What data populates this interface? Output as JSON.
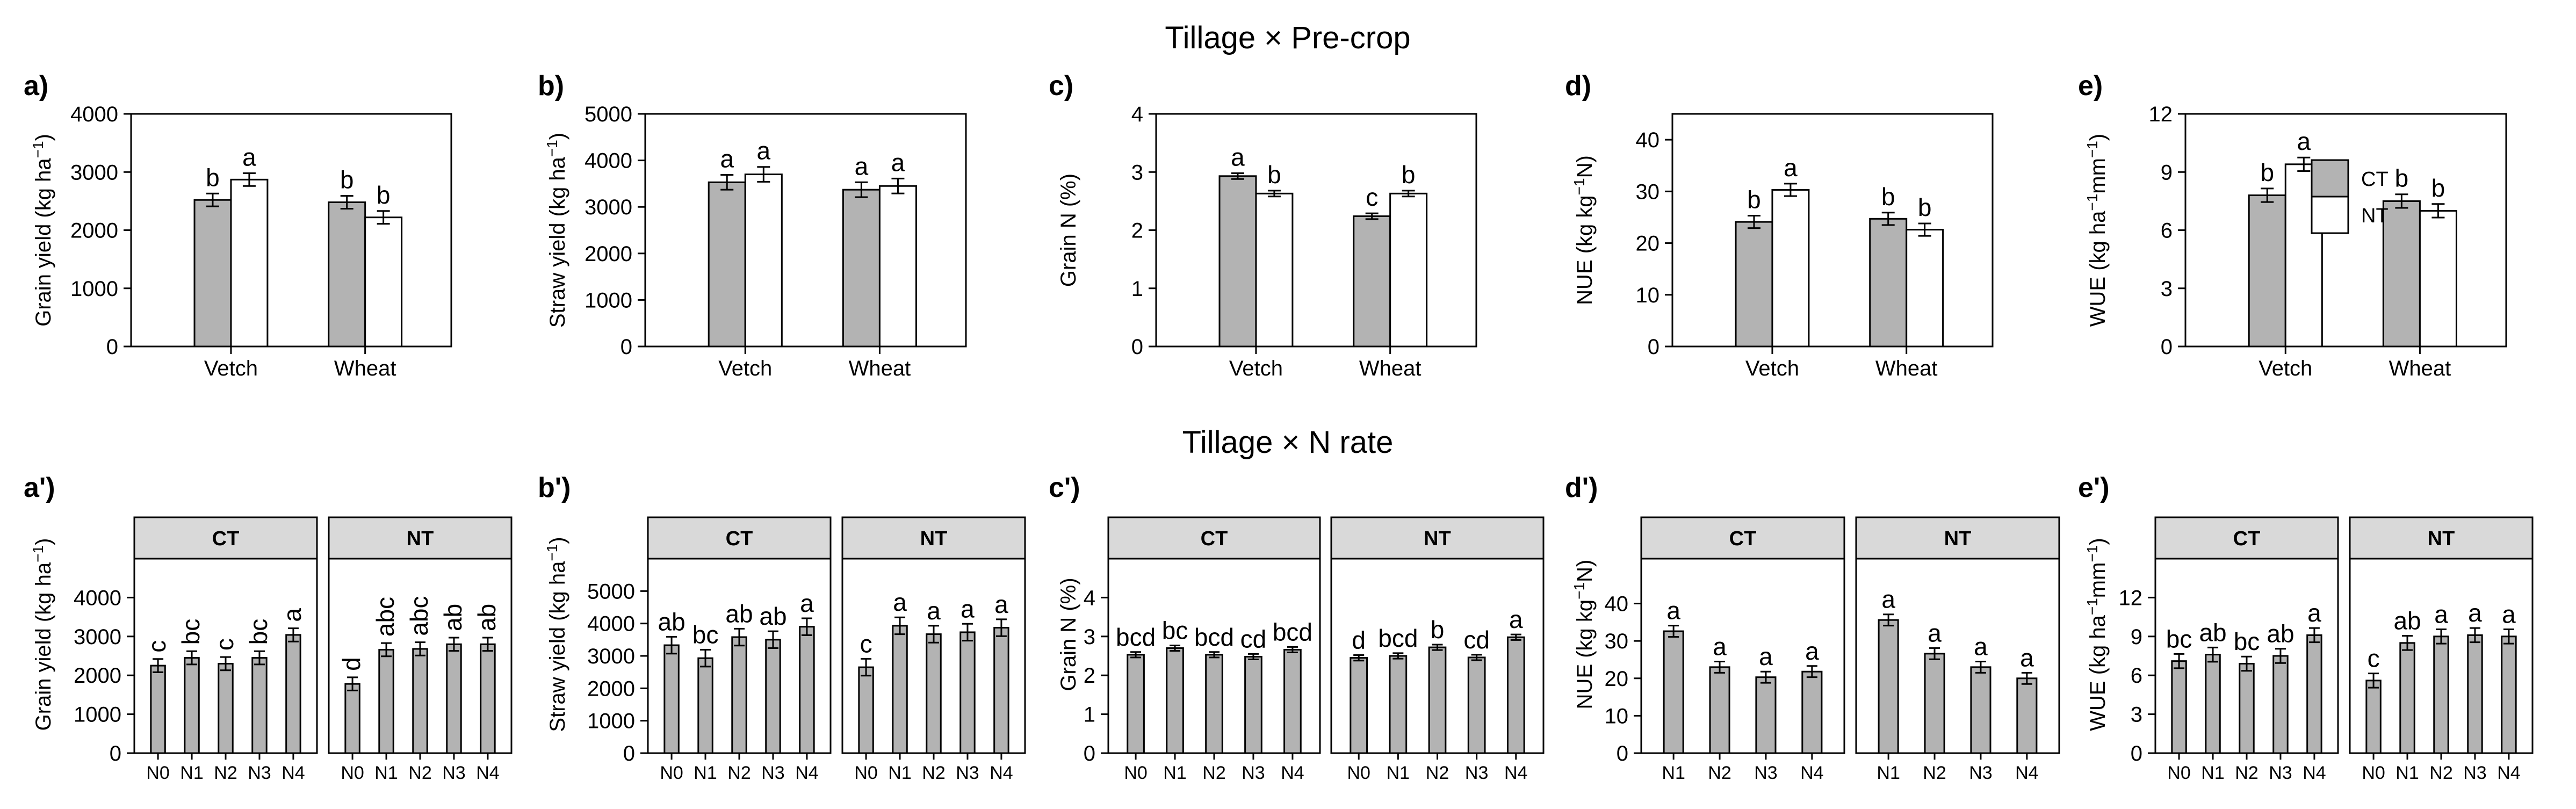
{
  "figure": {
    "row_titles": [
      "Tillage × Pre-crop",
      "Tillage × N rate"
    ]
  },
  "legend": {
    "entries": [
      {
        "label": "CT",
        "color": "#b3b3b3"
      },
      {
        "label": "NT",
        "color": "#ffffff"
      }
    ]
  },
  "colors": {
    "ct_fill": "#b3b3b3",
    "nt_fill": "#ffffff",
    "strip_fill": "#d9d9d9",
    "axis": "#000000"
  },
  "chart_data": [
    {
      "id": "a",
      "panel_label": "a)",
      "type": "bar",
      "title": "Tillage × Pre-crop",
      "ylabel": "Grain yield (kg  ha",
      "ylabel_sup": "−1",
      "ylabel_end": ")",
      "ylim": [
        0,
        4000
      ],
      "yticks": [
        0,
        1000,
        2000,
        3000,
        4000
      ],
      "categories": [
        "Vetch",
        "Wheat"
      ],
      "series": [
        {
          "name": "CT",
          "values": [
            2520,
            2480
          ],
          "errors": [
            110,
            110
          ],
          "letters": [
            "b",
            "b"
          ]
        },
        {
          "name": "NT",
          "values": [
            2870,
            2220
          ],
          "errors": [
            110,
            110
          ],
          "letters": [
            "a",
            "b"
          ]
        }
      ]
    },
    {
      "id": "b",
      "panel_label": "b)",
      "type": "bar",
      "title": "Tillage × Pre-crop",
      "ylabel": "Straw yield (kg  ha",
      "ylabel_sup": "−1",
      "ylabel_end": ")",
      "ylim": [
        0,
        5000
      ],
      "yticks": [
        0,
        1000,
        2000,
        3000,
        4000,
        5000
      ],
      "categories": [
        "Vetch",
        "Wheat"
      ],
      "series": [
        {
          "name": "CT",
          "values": [
            3530,
            3370
          ],
          "errors": [
            160,
            160
          ],
          "letters": [
            "a",
            "a"
          ]
        },
        {
          "name": "NT",
          "values": [
            3700,
            3450
          ],
          "errors": [
            160,
            160
          ],
          "letters": [
            "a",
            "a"
          ]
        }
      ]
    },
    {
      "id": "c",
      "panel_label": "c)",
      "type": "bar",
      "title": "Tillage × Pre-crop",
      "ylabel": "Grain N (%)",
      "ylabel_sup": "",
      "ylabel_end": "",
      "ylim": [
        0,
        4
      ],
      "yticks": [
        0,
        1,
        2,
        3,
        4
      ],
      "categories": [
        "Vetch",
        "Wheat"
      ],
      "series": [
        {
          "name": "CT",
          "values": [
            2.93,
            2.24
          ],
          "errors": [
            0.05,
            0.05
          ],
          "letters": [
            "a",
            "c"
          ]
        },
        {
          "name": "NT",
          "values": [
            2.63,
            2.63
          ],
          "errors": [
            0.05,
            0.05
          ],
          "letters": [
            "b",
            "b"
          ]
        }
      ]
    },
    {
      "id": "d",
      "panel_label": "d)",
      "type": "bar",
      "title": "Tillage × Pre-crop",
      "ylabel": "NUE (kg  kg",
      "ylabel_sup": "−1",
      "ylabel_end": "N)",
      "ylim": [
        0,
        45
      ],
      "yticks": [
        0,
        10,
        20,
        30,
        40
      ],
      "categories": [
        "Vetch",
        "Wheat"
      ],
      "series": [
        {
          "name": "CT",
          "values": [
            24.1,
            24.7
          ],
          "errors": [
            1.2,
            1.2
          ],
          "letters": [
            "b",
            "b"
          ]
        },
        {
          "name": "NT",
          "values": [
            30.3,
            22.6
          ],
          "errors": [
            1.2,
            1.2
          ],
          "letters": [
            "a",
            "b"
          ]
        }
      ]
    },
    {
      "id": "e",
      "panel_label": "e)",
      "type": "bar",
      "title": "Tillage × Pre-crop",
      "ylabel": "WUE (kg ha",
      "ylabel_sup": "−1",
      "ylabel_mid": "mm",
      "ylabel_sup2": "−1",
      "ylabel_end": ")",
      "ylim": [
        0,
        12
      ],
      "yticks": [
        0,
        3,
        6,
        9,
        12
      ],
      "categories": [
        "Vetch",
        "Wheat"
      ],
      "legend": true,
      "series": [
        {
          "name": "CT",
          "values": [
            7.8,
            7.5
          ],
          "errors": [
            0.35,
            0.35
          ],
          "letters": [
            "b",
            "b"
          ]
        },
        {
          "name": "NT",
          "values": [
            9.4,
            7.0
          ],
          "errors": [
            0.35,
            0.35
          ],
          "letters": [
            "a",
            "b"
          ]
        }
      ]
    },
    {
      "id": "a2",
      "panel_label": "a')",
      "type": "bar",
      "title": "Tillage × N rate",
      "ylabel": "Grain yield (kg  ha",
      "ylabel_sup": "−1",
      "ylabel_end": ")",
      "ylim": [
        0,
        5000
      ],
      "yticks": [
        0,
        1000,
        2000,
        3000,
        4000
      ],
      "rotate_letters": true,
      "facets": [
        {
          "strip": "CT",
          "categories": [
            "N0",
            "N1",
            "N2",
            "N3",
            "N4"
          ],
          "values": [
            2250,
            2450,
            2300,
            2450,
            3040
          ],
          "errors": [
            170,
            170,
            170,
            170,
            170
          ],
          "letters": [
            "c",
            "bc",
            "c",
            "bc",
            "a"
          ]
        },
        {
          "strip": "NT",
          "categories": [
            "N0",
            "N1",
            "N2",
            "N3",
            "N4"
          ],
          "values": [
            1780,
            2660,
            2680,
            2800,
            2800
          ],
          "errors": [
            170,
            170,
            170,
            170,
            170
          ],
          "letters": [
            "d",
            "abc",
            "abc",
            "ab",
            "ab"
          ]
        }
      ]
    },
    {
      "id": "b2",
      "panel_label": "b')",
      "type": "bar",
      "title": "Tillage × N rate",
      "ylabel": "Straw yield (kg  ha",
      "ylabel_sup": "−1",
      "ylabel_end": ")",
      "ylim": [
        0,
        6000
      ],
      "yticks": [
        0,
        1000,
        2000,
        3000,
        4000,
        5000
      ],
      "facets": [
        {
          "strip": "CT",
          "categories": [
            "N0",
            "N1",
            "N2",
            "N3",
            "N4"
          ],
          "values": [
            3330,
            2930,
            3580,
            3500,
            3900
          ],
          "errors": [
            260,
            260,
            260,
            260,
            260
          ],
          "letters": [
            "ab",
            "bc",
            "ab",
            "ab",
            "a"
          ]
        },
        {
          "strip": "NT",
          "categories": [
            "N0",
            "N1",
            "N2",
            "N3",
            "N4"
          ],
          "values": [
            2650,
            3930,
            3670,
            3730,
            3870
          ],
          "errors": [
            260,
            260,
            260,
            260,
            260
          ],
          "letters": [
            "c",
            "a",
            "a",
            "a",
            "a"
          ]
        }
      ]
    },
    {
      "id": "c2",
      "panel_label": "c')",
      "type": "bar",
      "title": "Tillage × N rate",
      "ylabel": "Grain N (%)",
      "ylabel_sup": "",
      "ylabel_end": "",
      "ylim": [
        0,
        5
      ],
      "yticks": [
        0,
        1,
        2,
        3,
        4
      ],
      "facets": [
        {
          "strip": "CT",
          "categories": [
            "N0",
            "N1",
            "N2",
            "N3",
            "N4"
          ],
          "values": [
            2.53,
            2.7,
            2.53,
            2.48,
            2.66
          ],
          "errors": [
            0.07,
            0.07,
            0.07,
            0.07,
            0.07
          ],
          "letters": [
            "bcd",
            "bc",
            "bcd",
            "cd",
            "bcd"
          ]
        },
        {
          "strip": "NT",
          "categories": [
            "N0",
            "N1",
            "N2",
            "N3",
            "N4"
          ],
          "values": [
            2.45,
            2.5,
            2.72,
            2.46,
            2.98
          ],
          "errors": [
            0.07,
            0.07,
            0.07,
            0.07,
            0.07
          ],
          "letters": [
            "d",
            "bcd",
            "b",
            "cd",
            "a"
          ]
        }
      ]
    },
    {
      "id": "d2",
      "panel_label": "d')",
      "type": "bar",
      "title": "Tillage × N rate",
      "ylabel": "NUE (kg  kg",
      "ylabel_sup": "−1",
      "ylabel_end": "N)",
      "ylim": [
        0,
        52
      ],
      "yticks": [
        0,
        10,
        20,
        30,
        40
      ],
      "facets": [
        {
          "strip": "CT",
          "categories": [
            "N1",
            "N2",
            "N3",
            "N4"
          ],
          "values": [
            32.6,
            23.0,
            20.3,
            21.8
          ],
          "errors": [
            1.5,
            1.5,
            1.5,
            1.5
          ],
          "letters": [
            "a",
            "a",
            "a",
            "a"
          ]
        },
        {
          "strip": "NT",
          "categories": [
            "N1",
            "N2",
            "N3",
            "N4"
          ],
          "values": [
            35.6,
            26.6,
            23.0,
            20.0
          ],
          "errors": [
            1.5,
            1.5,
            1.5,
            1.5
          ],
          "letters": [
            "a",
            "a",
            "a",
            "a"
          ]
        }
      ]
    },
    {
      "id": "e2",
      "panel_label": "e')",
      "type": "bar",
      "title": "Tillage × N rate",
      "ylabel": "WUE (kg ha",
      "ylabel_sup": "−1",
      "ylabel_mid": "mm",
      "ylabel_sup2": "−1",
      "ylabel_end": ")",
      "ylim": [
        0,
        15
      ],
      "yticks": [
        0,
        3,
        6,
        9,
        12
      ],
      "facets": [
        {
          "strip": "CT",
          "categories": [
            "N0",
            "N1",
            "N2",
            "N3",
            "N4"
          ],
          "values": [
            7.1,
            7.6,
            6.9,
            7.5,
            9.1
          ],
          "errors": [
            0.55,
            0.55,
            0.55,
            0.55,
            0.55
          ],
          "letters": [
            "bc",
            "ab",
            "bc",
            "ab",
            "a"
          ]
        },
        {
          "strip": "NT",
          "categories": [
            "N0",
            "N1",
            "N2",
            "N3",
            "N4"
          ],
          "values": [
            5.6,
            8.5,
            9.0,
            9.1,
            9.0
          ],
          "errors": [
            0.55,
            0.55,
            0.55,
            0.55,
            0.55
          ],
          "letters": [
            "c",
            "ab",
            "a",
            "a",
            "a"
          ]
        }
      ]
    }
  ]
}
